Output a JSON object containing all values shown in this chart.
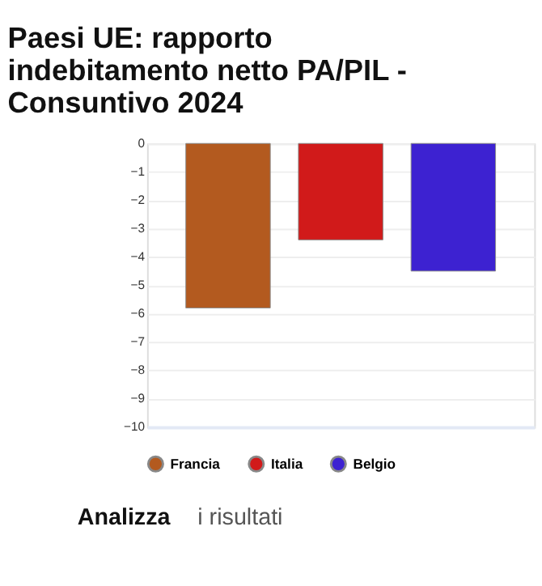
{
  "chart_data": {
    "type": "bar",
    "title": "Paesi UE: rapporto indebitamento netto PA/PIL - Consuntivo 2024",
    "categories": [
      null
    ],
    "series": [
      {
        "name": "Francia",
        "color": "#b35a1f",
        "values": [
          -5.8
        ]
      },
      {
        "name": "Italia",
        "color": "#d11a1a",
        "values": [
          -3.4
        ]
      },
      {
        "name": "Belgio",
        "color": "#3d22d1",
        "values": [
          -4.5
        ]
      }
    ],
    "ylim": [
      -10,
      0
    ],
    "yticks": [
      0,
      -1,
      -2,
      -3,
      -4,
      -5,
      -6,
      -7,
      -8,
      -9,
      -10
    ],
    "grid": "y",
    "legend": "bottom",
    "tick_labels": "y",
    "annotations": [
      "Analizza i risultati"
    ]
  }
}
